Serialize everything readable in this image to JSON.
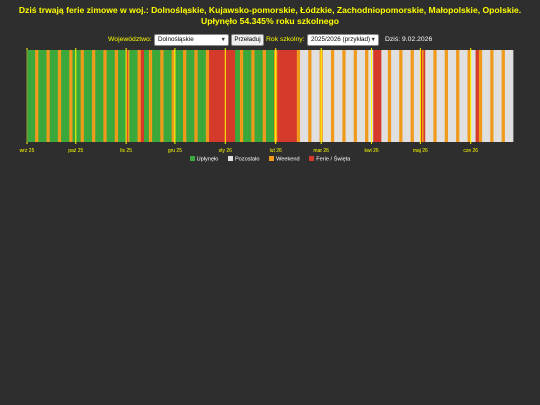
{
  "headline": "Dziś trwają ferie zimowe w woj.: Dolnośląskie, Kujawsko-pomorskie, Łódzkie, Zachodniopomorskie, Małopolskie, Opolskie. Upłynęło 54.345% roku szkolnego",
  "controls": {
    "voivodeship_label": "Województwo:",
    "voivodeship_value": "Dolnośląskie",
    "refresh_label": "Przeładuj",
    "year_label": "Rok szkolny:",
    "year_value": "2025/2026 (przykład)",
    "today_text": "Dziś: 9.02.2026"
  },
  "colors": {
    "background": "#2e2e2e",
    "headline": "#ffff00",
    "elapsed": "#3aa83a",
    "remaining": "#e0e0e0",
    "weekend": "#f09a1c",
    "holiday": "#d63a2a",
    "month_line": "#ffff00",
    "axis_tick_label": "#ffff00"
  },
  "chart_data": {
    "type": "heatmap",
    "start_date": "2025-09-01",
    "end_date": "2026-06-26",
    "today": "2026-02-09",
    "elapsed_percent": 54.345,
    "month_ticks": [
      "wrz 25",
      "paź 25",
      "lis 25",
      "gru 25",
      "sty 26",
      "lut 26",
      "mar 26",
      "kwi 26",
      "maj 26",
      "cze 26"
    ],
    "holiday_ranges": [
      [
        "2025-11-01",
        "2025-11-01"
      ],
      [
        "2025-11-10",
        "2025-11-11"
      ],
      [
        "2025-12-22",
        "2025-12-31"
      ],
      [
        "2026-01-01",
        "2026-01-06"
      ],
      [
        "2026-02-02",
        "2026-02-13"
      ],
      [
        "2026-04-02",
        "2026-04-06"
      ],
      [
        "2026-05-01",
        "2026-05-01"
      ],
      [
        "2026-05-03",
        "2026-05-03"
      ],
      [
        "2026-06-04",
        "2026-06-05"
      ]
    ],
    "legend": [
      {
        "label": "Upłynęło",
        "color": "#3aa83a"
      },
      {
        "label": "Pozostało",
        "color": "#e0e0e0"
      },
      {
        "label": "Weekend",
        "color": "#f09a1c"
      },
      {
        "label": "Ferie / Święta",
        "color": "#d63a2a"
      }
    ]
  }
}
